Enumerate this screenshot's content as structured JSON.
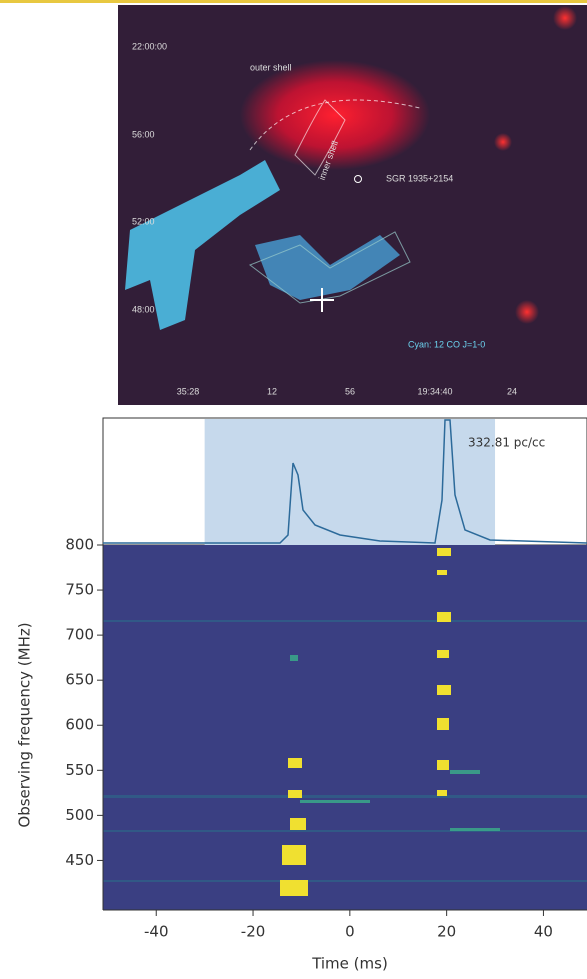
{
  "sky_image": {
    "dec_labels": [
      "22:00:00",
      "56:00",
      "52:00",
      "48:00"
    ],
    "ra_labels": [
      "35:28",
      "12",
      "56",
      "19:34:40",
      "24"
    ],
    "outer_shell": "outer shell",
    "inner_shell": "inner shell",
    "source": "SGR 1935+2154",
    "legend": "Cyan: 12 CO J=1-0"
  },
  "chart_data": {
    "type": "waterfall",
    "xlabel": "Time (ms)",
    "ylabel": "Observing frequency (MHz)",
    "annotation": "332.81 pc/cc",
    "xlim": [
      -51,
      49
    ],
    "xticks": [
      -40,
      -20,
      0,
      20,
      40
    ],
    "ylim": [
      395,
      800
    ],
    "yticks": [
      450,
      500,
      550,
      600,
      650,
      700,
      750,
      800
    ],
    "highlight_x": [
      -30,
      30
    ]
  }
}
